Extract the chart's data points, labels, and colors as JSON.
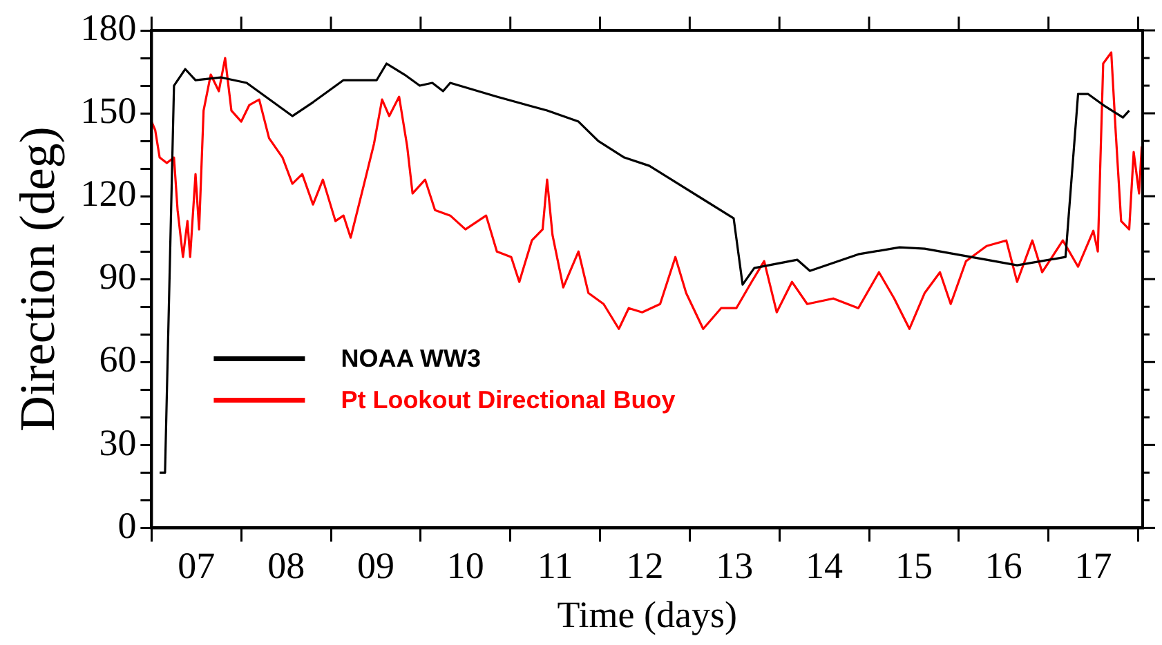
{
  "chart_data": {
    "type": "line",
    "xlabel": "Time (days)",
    "ylabel": "Direction (deg)",
    "xlim": [
      7,
      18.05
    ],
    "ylim": [
      0,
      180
    ],
    "xticks": [
      {
        "value": 7,
        "label": null
      },
      {
        "value": 7.5,
        "label": "07"
      },
      {
        "value": 8,
        "label": null
      },
      {
        "value": 8.5,
        "label": "08"
      },
      {
        "value": 9,
        "label": null
      },
      {
        "value": 9.5,
        "label": "09"
      },
      {
        "value": 10,
        "label": null
      },
      {
        "value": 10.5,
        "label": "10"
      },
      {
        "value": 11,
        "label": null
      },
      {
        "value": 11.5,
        "label": "11"
      },
      {
        "value": 12,
        "label": null
      },
      {
        "value": 12.5,
        "label": "12"
      },
      {
        "value": 13,
        "label": null
      },
      {
        "value": 13.5,
        "label": "13"
      },
      {
        "value": 14,
        "label": null
      },
      {
        "value": 14.5,
        "label": "14"
      },
      {
        "value": 15,
        "label": null
      },
      {
        "value": 15.5,
        "label": "15"
      },
      {
        "value": 16,
        "label": null
      },
      {
        "value": 16.5,
        "label": "16"
      },
      {
        "value": 17,
        "label": null
      },
      {
        "value": 17.5,
        "label": "17"
      },
      {
        "value": 18,
        "label": null
      }
    ],
    "yticks": [
      0,
      {
        "value": 10,
        "label": null
      },
      {
        "value": 20,
        "label": null
      },
      30,
      {
        "value": 40,
        "label": null
      },
      {
        "value": 50,
        "label": null
      },
      60,
      {
        "value": 70,
        "label": null
      },
      {
        "value": 80,
        "label": null
      },
      90,
      {
        "value": 100,
        "label": null
      },
      {
        "value": 110,
        "label": null
      },
      120,
      {
        "value": 130,
        "label": null
      },
      {
        "value": 140,
        "label": null
      },
      150,
      {
        "value": 160,
        "label": null
      },
      {
        "value": 170,
        "label": null
      },
      180
    ],
    "grid": false,
    "legend": "left",
    "marker": "none",
    "line_style": "solid",
    "series": [
      {
        "name": "NOAA WW3",
        "color": "#000000",
        "x": [
          7.09,
          7.15,
          7.25,
          7.375,
          7.49,
          7.77,
          8.06,
          8.23,
          8.57,
          8.8,
          9.14,
          9.51,
          9.62,
          9.82,
          9.99,
          10.13,
          10.25,
          10.33,
          10.85,
          11.41,
          11.76,
          11.98,
          12.27,
          12.55,
          13.49,
          13.59,
          13.72,
          14.2,
          14.34,
          14.88,
          15.34,
          15.62,
          16.31,
          16.65,
          17.19,
          17.33,
          17.44,
          17.61,
          17.83,
          17.9
        ],
        "values": [
          20,
          20,
          160,
          166,
          162,
          163,
          161,
          157,
          149,
          154,
          162,
          162,
          168,
          164,
          160,
          161,
          158,
          161,
          156,
          151,
          147,
          140,
          134,
          131,
          112,
          88,
          94,
          97,
          93,
          99,
          101.5,
          101,
          97,
          95,
          98,
          157,
          157,
          153,
          148.5,
          151
        ]
      },
      {
        "name": "Pt Lookout Directional Buoy",
        "color": "#ff0000",
        "x": [
          7.0,
          7.04,
          7.09,
          7.17,
          7.25,
          7.29,
          7.35,
          7.4,
          7.43,
          7.49,
          7.53,
          7.58,
          7.66,
          7.75,
          7.82,
          7.89,
          8.0,
          8.09,
          8.2,
          8.31,
          8.46,
          8.57,
          8.68,
          8.8,
          8.91,
          9.05,
          9.14,
          9.22,
          9.37,
          9.48,
          9.57,
          9.65,
          9.76,
          9.85,
          9.91,
          10.05,
          10.16,
          10.33,
          10.5,
          10.73,
          10.85,
          11.01,
          11.1,
          11.24,
          11.36,
          11.41,
          11.47,
          11.59,
          11.76,
          11.87,
          12.04,
          12.21,
          12.32,
          12.47,
          12.67,
          12.84,
          12.96,
          13.15,
          13.35,
          13.52,
          13.69,
          13.83,
          13.97,
          14.14,
          14.31,
          14.6,
          14.88,
          15.11,
          15.28,
          15.45,
          15.62,
          15.79,
          15.91,
          16.08,
          16.31,
          16.53,
          16.65,
          16.82,
          16.93,
          17.16,
          17.33,
          17.5,
          17.55,
          17.61,
          17.7,
          17.75,
          17.81,
          17.9,
          17.95,
          18.01,
          18.04
        ],
        "values": [
          147,
          144,
          134,
          132,
          134,
          115,
          98,
          111,
          98,
          128,
          108,
          151,
          164,
          158,
          170,
          151,
          147,
          153,
          155,
          141,
          134,
          124.5,
          128,
          117,
          126,
          111,
          113,
          105,
          124.5,
          139,
          155,
          149,
          156,
          138,
          121,
          126,
          115,
          113,
          108,
          113,
          100,
          98,
          89,
          104,
          108,
          126,
          106,
          87,
          100,
          85,
          81,
          72,
          79.5,
          78,
          81,
          98,
          85,
          72,
          79.5,
          79.5,
          89,
          96.5,
          78,
          89,
          81,
          83,
          79.5,
          92.5,
          83,
          72,
          85,
          92.5,
          81,
          96.5,
          102,
          104,
          89,
          104,
          92.5,
          104,
          94.5,
          107.5,
          100,
          168,
          172,
          143,
          111,
          108,
          136,
          121,
          138
        ]
      }
    ]
  }
}
